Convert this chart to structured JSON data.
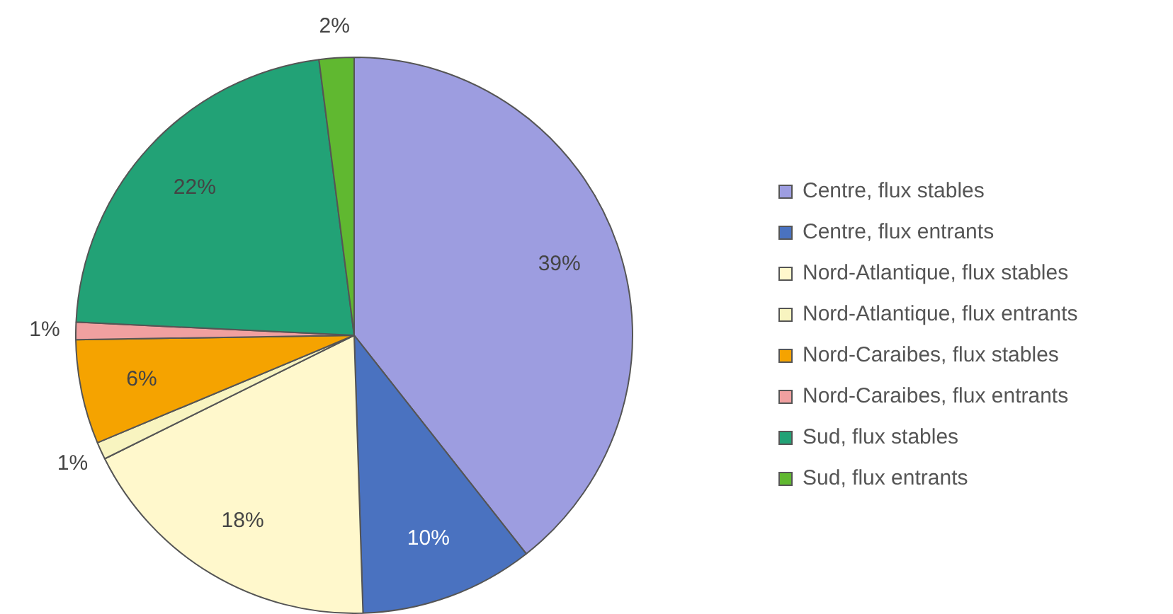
{
  "chart_data": {
    "type": "pie",
    "categories": [
      "Centre, flux stables",
      "Centre, flux entrants",
      "Nord-Atlantique, flux stables",
      "Nord-Atlantique, flux entrants",
      "Nord-Caraibes, flux stables",
      "Nord-Caraibes, flux entrants",
      "Sud, flux stables",
      "Sud, flux entrants"
    ],
    "values": [
      39,
      10,
      18,
      1,
      6,
      1,
      22,
      2
    ],
    "value_labels": [
      "39%",
      "10%",
      "18%",
      "1%",
      "6%",
      "1%",
      "22%",
      "2%"
    ],
    "colors": [
      "#9d9de0",
      "#4a72c0",
      "#fff8cc",
      "#f8f4c0",
      "#f5a300",
      "#f0a0a0",
      "#22a276",
      "#60b830"
    ],
    "legend": "right"
  }
}
